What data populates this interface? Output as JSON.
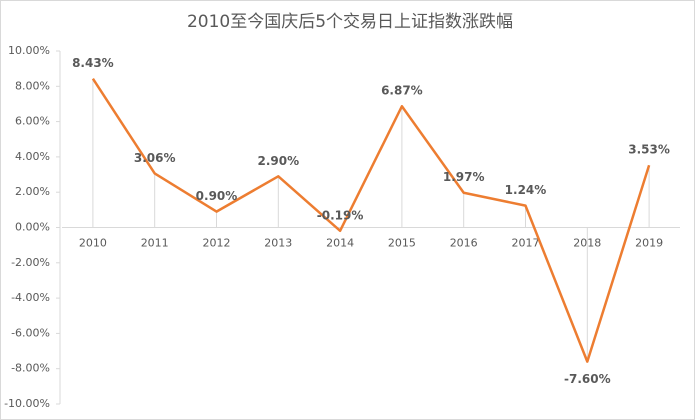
{
  "chart_data": {
    "type": "line",
    "title": "2010至今国庆后5个交易日上证指数涨跌幅",
    "categories": [
      "2010",
      "2011",
      "2012",
      "2013",
      "2014",
      "2015",
      "2016",
      "2017",
      "2018",
      "2019"
    ],
    "series": [
      {
        "name": "涨跌幅",
        "color": "#ed7d31",
        "values": [
          8.43,
          3.06,
          0.9,
          2.9,
          -0.19,
          6.87,
          1.97,
          1.24,
          -7.6,
          3.53
        ],
        "value_labels": [
          "8.43%",
          "3.06%",
          "0.90%",
          "2.90%",
          "-0.19%",
          "6.87%",
          "1.97%",
          "1.24%",
          "-7.60%",
          "3.53%"
        ]
      }
    ],
    "ylim": [
      -10,
      10
    ],
    "yticks": [
      {
        "value": -10,
        "label": "-10.00%"
      },
      {
        "value": -8,
        "label": "-8.00%"
      },
      {
        "value": -6,
        "label": "-6.00%"
      },
      {
        "value": -4,
        "label": "-4.00%"
      },
      {
        "value": -2,
        "label": "-2.00%"
      },
      {
        "value": 0,
        "label": "0.00%"
      },
      {
        "value": 2,
        "label": "2.00%"
      },
      {
        "value": 4,
        "label": "4.00%"
      },
      {
        "value": 6,
        "label": "6.00%"
      },
      {
        "value": 8,
        "label": "8.00%"
      },
      {
        "value": 10,
        "label": "10.00%"
      }
    ]
  }
}
